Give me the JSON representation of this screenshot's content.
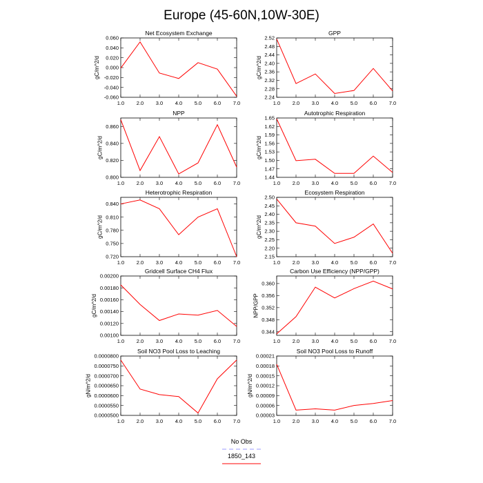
{
  "figure": {
    "title": "Europe (45-60N,10W-30E)"
  },
  "legend": [
    {
      "label": "No Obs",
      "color": "#9999ff",
      "style": "dashed"
    },
    {
      "label": "1850_143",
      "color": "#ff0000",
      "style": "solid"
    }
  ],
  "chart_data": [
    {
      "type": "line",
      "title": "Net Ecosystem Exchange",
      "ylabel": "gC/m^2/d",
      "x": [
        1,
        2,
        3,
        4,
        5,
        6,
        7
      ],
      "xlim": [
        1,
        7
      ],
      "xticks": [
        "1.0",
        "2.0",
        "3.0",
        "4.0",
        "5.0",
        "6.0",
        "7.0"
      ],
      "ylim": [
        -0.06,
        0.06
      ],
      "yticks": [
        "0.060",
        "0.040",
        "0.020",
        "0.000",
        "-0.020",
        "-0.040",
        "-0.060"
      ],
      "series": [
        {
          "values": [
            -0.001,
            0.052,
            -0.011,
            -0.022,
            0.01,
            -0.003,
            -0.058
          ]
        }
      ]
    },
    {
      "type": "line",
      "title": "GPP",
      "ylabel": "gC/m^2/d",
      "x": [
        1,
        2,
        3,
        4,
        5,
        6,
        7
      ],
      "xlim": [
        1,
        7
      ],
      "xticks": [
        "1.0",
        "2.0",
        "3.0",
        "4.0",
        "5.0",
        "6.0",
        "7.0"
      ],
      "ylim": [
        2.24,
        2.52
      ],
      "yticks": [
        "2.52",
        "2.48",
        "2.44",
        "2.40",
        "2.36",
        "2.32",
        "2.28",
        "2.24"
      ],
      "series": [
        {
          "values": [
            2.515,
            2.305,
            2.35,
            2.258,
            2.272,
            2.376,
            2.27
          ]
        }
      ]
    },
    {
      "type": "line",
      "title": "NPP",
      "ylabel": "gC/m^2/d",
      "x": [
        1,
        2,
        3,
        4,
        5,
        6,
        7
      ],
      "xlim": [
        1,
        7
      ],
      "xticks": [
        "1.0",
        "2.0",
        "3.0",
        "4.0",
        "5.0",
        "6.0",
        "7.0"
      ],
      "ylim": [
        0.8,
        0.87
      ],
      "yticks": [
        "0.860",
        "0.840",
        "0.820",
        "0.800"
      ],
      "series": [
        {
          "values": [
            0.868,
            0.808,
            0.848,
            0.804,
            0.817,
            0.862,
            0.812
          ]
        }
      ]
    },
    {
      "type": "line",
      "title": "Autotrophic Respiration",
      "ylabel": "gC/m^2/d",
      "x": [
        1,
        2,
        3,
        4,
        5,
        6,
        7
      ],
      "xlim": [
        1,
        7
      ],
      "xticks": [
        "1.0",
        "2.0",
        "3.0",
        "4.0",
        "5.0",
        "6.0",
        "7.0"
      ],
      "ylim": [
        1.44,
        1.65
      ],
      "yticks": [
        "1.65",
        "1.62",
        "1.59",
        "1.56",
        "1.53",
        "1.50",
        "1.47",
        "1.44"
      ],
      "series": [
        {
          "values": [
            1.647,
            1.499,
            1.504,
            1.454,
            1.454,
            1.515,
            1.457
          ]
        }
      ]
    },
    {
      "type": "line",
      "title": "Heterotrophic Respiration",
      "ylabel": "gC/m^2/d",
      "x": [
        1,
        2,
        3,
        4,
        5,
        6,
        7
      ],
      "xlim": [
        1,
        7
      ],
      "xticks": [
        "1.0",
        "2.0",
        "3.0",
        "4.0",
        "5.0",
        "6.0",
        "7.0"
      ],
      "ylim": [
        0.72,
        0.855
      ],
      "yticks": [
        "0.840",
        "0.810",
        "0.780",
        "0.750",
        "0.720"
      ],
      "series": [
        {
          "values": [
            0.84,
            0.849,
            0.829,
            0.77,
            0.81,
            0.829,
            0.72
          ]
        }
      ]
    },
    {
      "type": "line",
      "title": "Ecosystem Respiration",
      "ylabel": "gC/m^2/d",
      "x": [
        1,
        2,
        3,
        4,
        5,
        6,
        7
      ],
      "xlim": [
        1,
        7
      ],
      "xticks": [
        "1.0",
        "2.0",
        "3.0",
        "4.0",
        "5.0",
        "6.0",
        "7.0"
      ],
      "ylim": [
        2.15,
        2.5
      ],
      "yticks": [
        "2.50",
        "2.45",
        "2.40",
        "2.35",
        "2.30",
        "2.25",
        "2.20",
        "2.15"
      ],
      "series": [
        {
          "values": [
            2.49,
            2.35,
            2.33,
            2.228,
            2.265,
            2.343,
            2.17
          ]
        }
      ]
    },
    {
      "type": "line",
      "title": "Gridcell Surface CH4 Flux",
      "ylabel": "gC/m^2/d",
      "x": [
        1,
        2,
        3,
        4,
        5,
        6,
        7
      ],
      "xlim": [
        1,
        7
      ],
      "xticks": [
        "1.0",
        "2.0",
        "3.0",
        "4.0",
        "5.0",
        "6.0",
        "7.0"
      ],
      "ylim": [
        0.001,
        0.002
      ],
      "yticks": [
        "0.00200",
        "0.00180",
        "0.00160",
        "0.00140",
        "0.00120",
        "0.00100"
      ],
      "series": [
        {
          "values": [
            0.00185,
            0.00152,
            0.00125,
            0.00136,
            0.00134,
            0.00142,
            0.00115
          ]
        }
      ]
    },
    {
      "type": "line",
      "title": "Carbon Use Efficiency (NPP/GPP)",
      "ylabel": "NPP/GPP",
      "x": [
        1,
        2,
        3,
        4,
        5,
        6,
        7
      ],
      "xlim": [
        1,
        7
      ],
      "xticks": [
        "1.0",
        "2.0",
        "3.0",
        "4.0",
        "5.0",
        "6.0",
        "7.0"
      ],
      "ylim": [
        0.3428,
        0.3625
      ],
      "yticks": [
        "0.360",
        "0.356",
        "0.352",
        "0.348",
        "0.344"
      ],
      "series": [
        {
          "values": [
            0.3433,
            0.349,
            0.3588,
            0.3552,
            0.3583,
            0.3608,
            0.3582
          ]
        }
      ]
    },
    {
      "type": "line",
      "title": "Soil NO3 Pool Loss to Leaching",
      "ylabel": "gN/m^2/d",
      "x": [
        1,
        2,
        3,
        4,
        5,
        6,
        7
      ],
      "xlim": [
        1,
        7
      ],
      "xticks": [
        "1.0",
        "2.0",
        "3.0",
        "4.0",
        "5.0",
        "6.0",
        "7.0"
      ],
      "ylim": [
        5e-05,
        8e-05
      ],
      "yticks": [
        "0.0000800",
        "0.0000750",
        "0.0000700",
        "0.0000650",
        "0.0000600",
        "0.0000550",
        "0.0000500"
      ],
      "series": [
        {
          "values": [
            7.8e-05,
            6.33e-05,
            6.05e-05,
            5.95e-05,
            5.12e-05,
            6.85e-05,
            7.8e-05
          ]
        }
      ]
    },
    {
      "type": "line",
      "title": "Soil NO3 Pool Loss to Runoff",
      "ylabel": "gN/m^2/d",
      "x": [
        1,
        2,
        3,
        4,
        5,
        6,
        7
      ],
      "xlim": [
        1,
        7
      ],
      "xticks": [
        "1.0",
        "2.0",
        "3.0",
        "4.0",
        "5.0",
        "6.0",
        "7.0"
      ],
      "ylim": [
        3e-05,
        0.00021
      ],
      "yticks": [
        "0.00021",
        "0.00018",
        "0.00015",
        "0.00012",
        "0.00009",
        "0.00006",
        "0.00003"
      ],
      "series": [
        {
          "values": [
            0.000185,
            4.6e-05,
            5e-05,
            4.6e-05,
            6e-05,
            6.6e-05,
            7.5e-05
          ]
        }
      ]
    }
  ]
}
